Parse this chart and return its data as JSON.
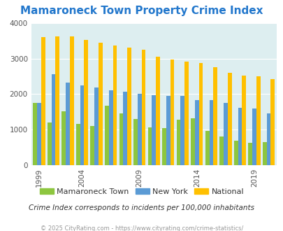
{
  "title": "Mamaroneck Town Property Crime Index",
  "title_color": "#2277cc",
  "subtitle": "Crime Index corresponds to incidents per 100,000 inhabitants",
  "footer": "© 2025 CityRating.com - https://www.cityrating.com/crime-statistics/",
  "years": [
    1999,
    2000,
    2002,
    2004,
    2005,
    2006,
    2008,
    2009,
    2011,
    2012,
    2013,
    2014,
    2016,
    2017,
    2018,
    2019,
    2020
  ],
  "mamaroneck": [
    1750,
    1200,
    1520,
    1170,
    1100,
    1670,
    1450,
    1300,
    1070,
    1050,
    1280,
    1320,
    970,
    800,
    690,
    630,
    650
  ],
  "new_york": [
    1760,
    2570,
    2330,
    2250,
    2190,
    2110,
    2060,
    2010,
    1970,
    1960,
    1950,
    1840,
    1840,
    1750,
    1620,
    1590,
    1460
  ],
  "national": [
    3610,
    3630,
    3630,
    3520,
    3440,
    3360,
    3310,
    3250,
    3060,
    2980,
    2920,
    2870,
    2760,
    2610,
    2530,
    2500,
    2420
  ],
  "xtick_years": [
    1999,
    2004,
    2009,
    2014,
    2019
  ],
  "bar_width": 0.28,
  "ylim": [
    0,
    4000
  ],
  "yticks": [
    0,
    1000,
    2000,
    3000,
    4000
  ],
  "color_mamaroneck": "#8dc63f",
  "color_ny": "#5b9bd5",
  "color_national": "#ffc000",
  "bg_color": "#ddeef0",
  "legend_labels": [
    "Mamaroneck Town",
    "New York",
    "National"
  ],
  "subtitle_color": "#333333",
  "footer_color": "#999999",
  "title_fontsize": 11,
  "tick_fontsize": 7.5,
  "legend_fontsize": 8,
  "subtitle_fontsize": 7.5,
  "footer_fontsize": 6
}
